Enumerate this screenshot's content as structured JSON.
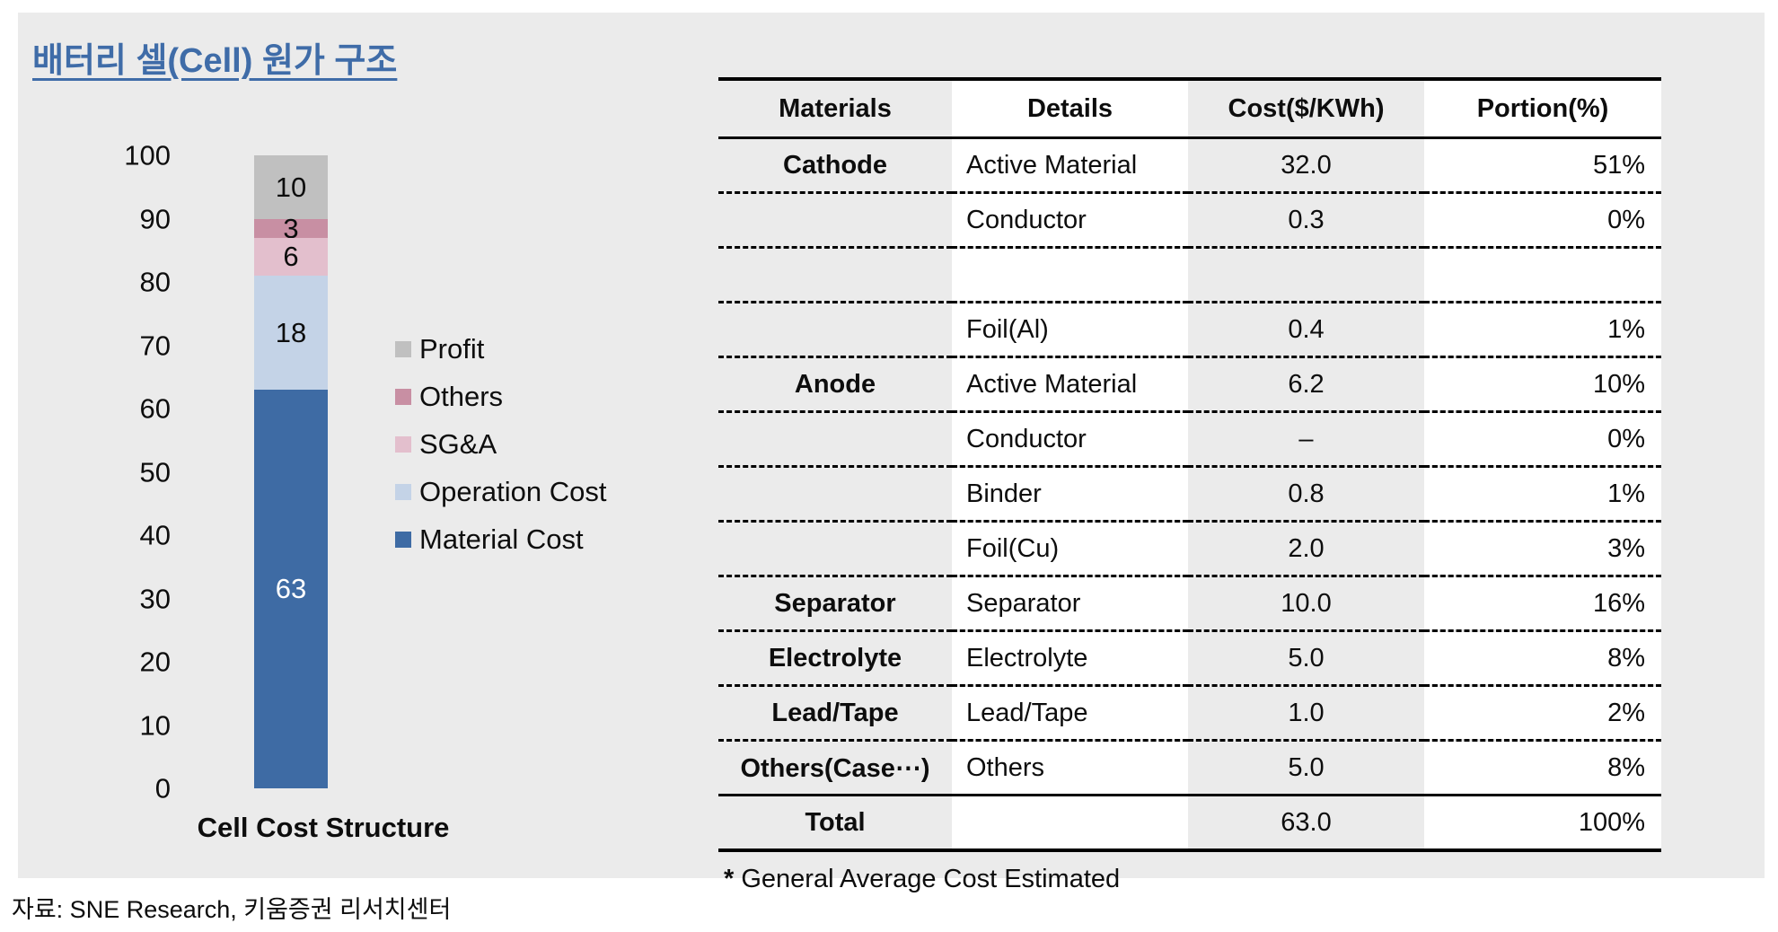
{
  "page": {
    "title": "배터리 셀(Cell) 원가 구조",
    "source": "자료: SNE Research, 키움증권 리서치센터"
  },
  "colors": {
    "panel_background": "#EBEBEB",
    "title_blue": "#3F6CA8"
  },
  "chart_data": [
    {
      "type": "bar",
      "stacked": true,
      "title": "Cell Cost Structure",
      "categories": [
        "Cell Cost Structure"
      ],
      "series": [
        {
          "name": "Material Cost",
          "value": 63,
          "color": "#3E6BA4",
          "label_color": "#ffffff"
        },
        {
          "name": "Operation Cost",
          "value": 18,
          "color": "#C4D3E7",
          "label_color": "#0d0d0d"
        },
        {
          "name": "SG&A",
          "value": 6,
          "color": "#E3BFCD",
          "label_color": "#0d0d0d"
        },
        {
          "name": "Others",
          "value": 3,
          "color": "#C88FA3",
          "label_color": "#0d0d0d"
        },
        {
          "name": "Profit",
          "value": 10,
          "color": "#C0C0C0",
          "label_color": "#0d0d0d"
        }
      ],
      "ylim": [
        0,
        100
      ],
      "ytick_step": 10,
      "grid": false,
      "legend_position": "right",
      "legend_order": [
        "Profit",
        "Others",
        "SG&A",
        "Operation Cost",
        "Material Cost"
      ]
    },
    {
      "type": "table",
      "headers": [
        "Materials",
        "Details",
        "Cost($/KWh)",
        "Portion(%)"
      ],
      "rows": [
        [
          "Cathode",
          "Active Material",
          "32.0",
          "51%"
        ],
        [
          "",
          "Conductor",
          "0.3",
          "0%"
        ],
        [
          "",
          "",
          "",
          ""
        ],
        [
          "",
          "Foil(Al)",
          "0.4",
          "1%"
        ],
        [
          "Anode",
          "Active Material",
          "6.2",
          "10%"
        ],
        [
          "",
          "Conductor",
          "–",
          "0%"
        ],
        [
          "",
          "Binder",
          "0.8",
          "1%"
        ],
        [
          "",
          "Foil(Cu)",
          "2.0",
          "3%"
        ],
        [
          "Separator",
          "Separator",
          "10.0",
          "16%"
        ],
        [
          "Electrolyte",
          "Electrolyte",
          "5.0",
          "8%"
        ],
        [
          "Lead/Tape",
          "Lead/Tape",
          "1.0",
          "2%"
        ],
        [
          "Others(Case⋯)",
          "Others",
          "5.0",
          "8%"
        ]
      ],
      "total_row": [
        "Total",
        "",
        "63.0",
        "100%"
      ],
      "footnote_star": "*",
      "footnote_text": " General Average Cost Estimated"
    }
  ]
}
